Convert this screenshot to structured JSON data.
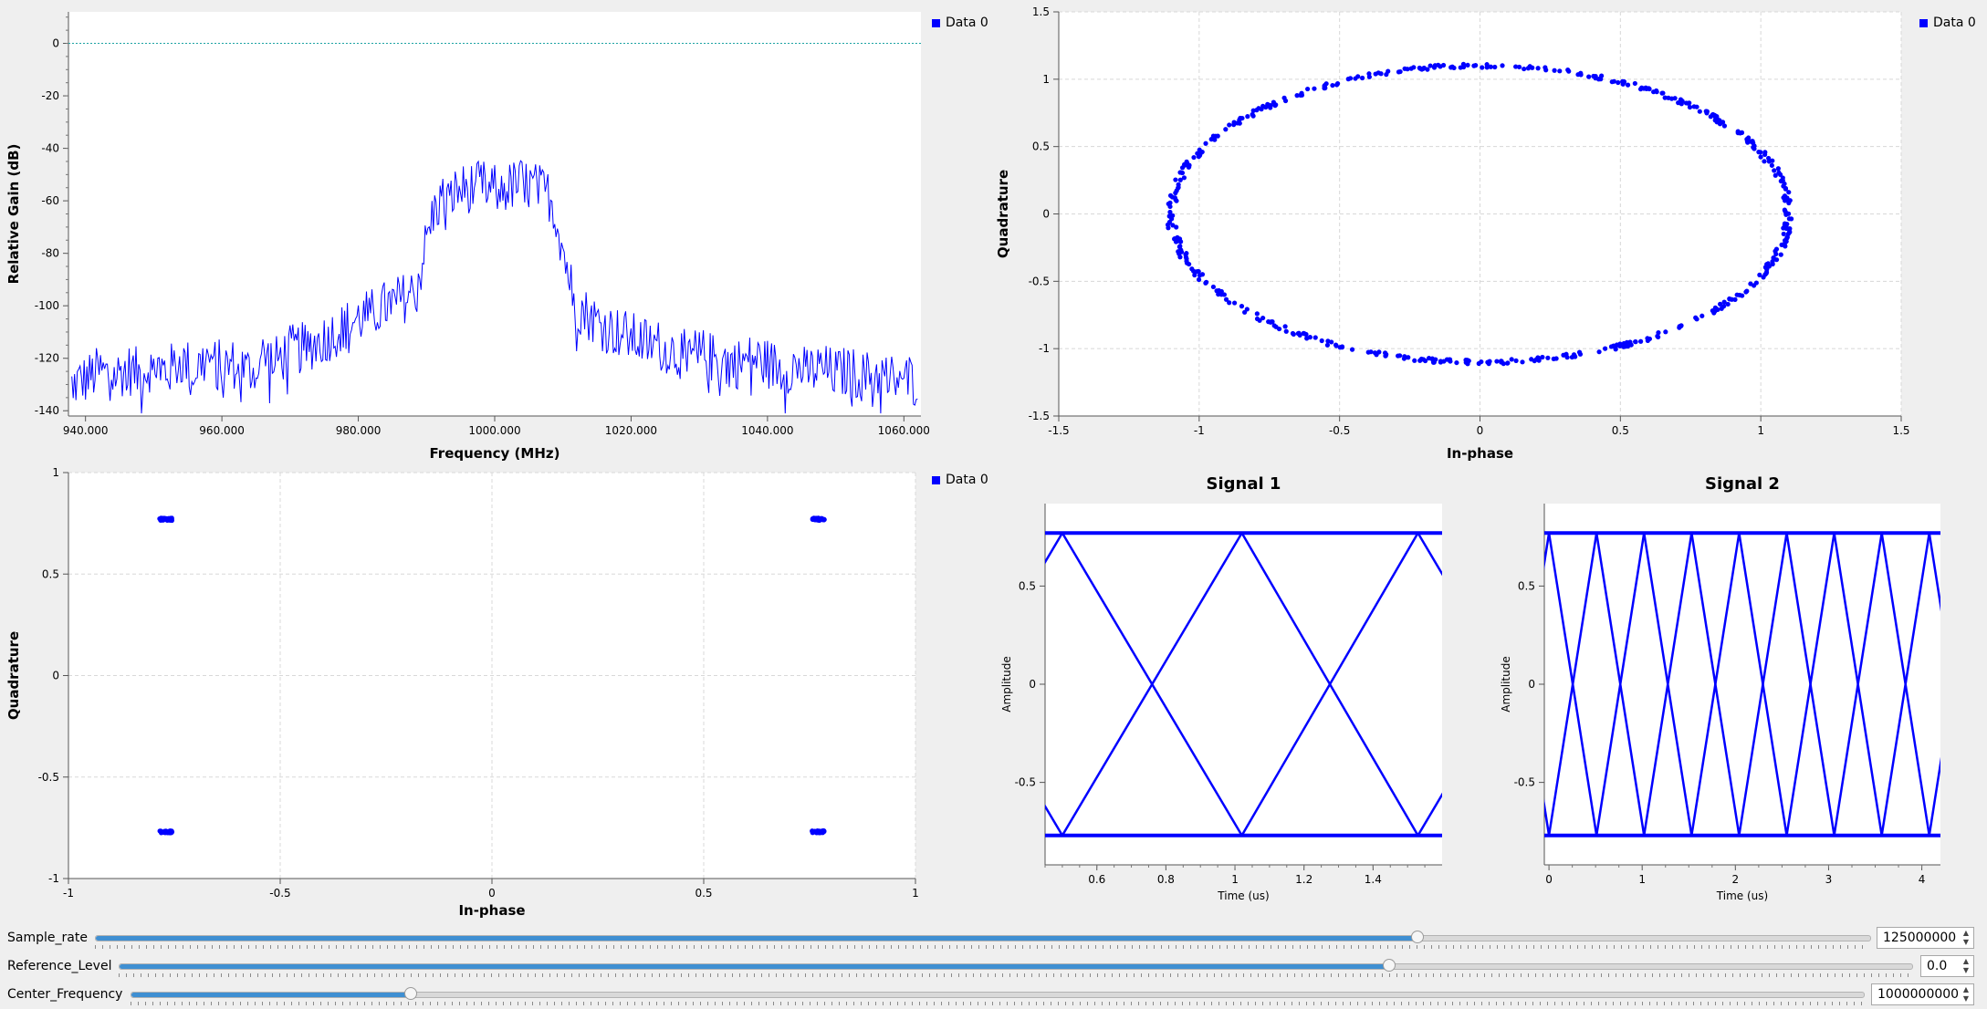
{
  "legend": {
    "series_label": "Data 0"
  },
  "colors": {
    "trace": "#0000ff",
    "grid": "#d8d8d8",
    "ref_line": "#1ca3a3",
    "accent": "#3f8fd2"
  },
  "chart_data": [
    {
      "type": "line",
      "name": "frequency-sink",
      "xlabel": "Frequency (MHz)",
      "ylabel": "Relative Gain (dB)",
      "xlim": [
        937.5,
        1062.5
      ],
      "ylim": [
        -142,
        12
      ],
      "x_ticks": [
        940,
        960,
        980,
        1000,
        1020,
        1040,
        1060
      ],
      "x_tick_labels": [
        "940.000",
        "960.000",
        "980.000",
        "1000.000",
        "1020.000",
        "1040.000",
        "1060.000"
      ],
      "y_ticks": [
        0,
        -20,
        -40,
        -60,
        -80,
        -100,
        -120,
        -140
      ],
      "y_tick_labels": [
        "0",
        "-20",
        "-40",
        "-60",
        "-80",
        "-100",
        "-120",
        "-140"
      ],
      "reference_level": 0,
      "series": [
        {
          "name": "Data 0",
          "x": [
            938,
            940,
            942,
            944,
            946,
            948,
            950,
            952,
            954,
            956,
            958,
            960,
            962,
            964,
            966,
            968,
            970,
            972,
            974,
            976,
            978,
            980,
            982,
            984,
            986,
            988,
            989,
            990,
            991,
            992,
            994,
            996,
            998,
            1000,
            1002,
            1004,
            1006,
            1008,
            1009,
            1010,
            1011,
            1012,
            1014,
            1016,
            1018,
            1020,
            1022,
            1024,
            1026,
            1028,
            1030,
            1032,
            1034,
            1036,
            1038,
            1040,
            1042,
            1044,
            1046,
            1048,
            1050,
            1052,
            1054,
            1056,
            1058,
            1060,
            1062
          ],
          "values": [
            -130,
            -128,
            -125,
            -127,
            -124,
            -126,
            -122,
            -125,
            -121,
            -124,
            -120,
            -123,
            -122,
            -125,
            -119,
            -121,
            -117,
            -116,
            -114,
            -111,
            -108,
            -105,
            -103,
            -100,
            -98,
            -95,
            -88,
            -75,
            -65,
            -60,
            -57,
            -55,
            -54,
            -56,
            -55,
            -53,
            -55,
            -58,
            -66,
            -78,
            -90,
            -100,
            -104,
            -108,
            -110,
            -112,
            -114,
            -115,
            -117,
            -119,
            -118,
            -120,
            -121,
            -122,
            -120,
            -122,
            -124,
            -123,
            -125,
            -124,
            -126,
            -125,
            -127,
            -126,
            -128,
            -127,
            -129
          ]
        }
      ],
      "plot_color": "#0000ff"
    },
    {
      "type": "scatter",
      "name": "constellation-top",
      "xlabel": "In-phase",
      "ylabel": "Quadrature",
      "xlim": [
        -1.5,
        1.5
      ],
      "ylim": [
        -1.5,
        1.5
      ],
      "x_ticks": [
        -1.5,
        -1,
        -0.5,
        0,
        0.5,
        1,
        1.5
      ],
      "x_tick_labels": [
        "-1.5",
        "-1",
        "-0.5",
        "0",
        "0.5",
        "1",
        "1.5"
      ],
      "y_ticks": [
        1.5,
        1,
        0.5,
        0,
        -0.5,
        -1,
        -1.5
      ],
      "y_tick_labels": [
        "1.5",
        "1",
        "0.5",
        "0",
        "-0.5",
        "-1",
        "-1.5"
      ],
      "series": [
        {
          "name": "Data 0",
          "shape": "circle",
          "radius": 1.1
        }
      ]
    },
    {
      "type": "scatter",
      "name": "constellation-bottom",
      "xlabel": "In-phase",
      "ylabel": "Quadrature",
      "xlim": [
        -1,
        1
      ],
      "ylim": [
        -1,
        1
      ],
      "x_ticks": [
        -1,
        -0.5,
        0,
        0.5,
        1
      ],
      "x_tick_labels": [
        "-1",
        "-0.5",
        "0",
        "0.5",
        "1"
      ],
      "y_ticks": [
        1,
        0.5,
        0,
        -0.5,
        -1
      ],
      "y_tick_labels": [
        "1",
        "0.5",
        "0",
        "-0.5",
        "-1"
      ],
      "series": [
        {
          "name": "Data 0",
          "points": [
            [
              -0.77,
              0.77
            ],
            [
              0.77,
              0.77
            ],
            [
              -0.77,
              -0.77
            ],
            [
              0.77,
              -0.77
            ]
          ]
        }
      ]
    },
    {
      "type": "line",
      "name": "eye-signal-1",
      "title": "Signal 1",
      "xlabel": "Time (us)",
      "ylabel": "Amplitude",
      "xlim": [
        0.45,
        1.6
      ],
      "ylim": [
        -0.92,
        0.92
      ],
      "x_ticks": [
        0.6,
        0.8,
        1,
        1.2,
        1.4
      ],
      "x_tick_labels": [
        "0.6",
        "0.8",
        "1",
        "1.2",
        "1.4"
      ],
      "y_ticks": [
        0.5,
        0,
        -0.5
      ],
      "y_tick_labels": [
        "0.5",
        "0",
        "-0.5"
      ],
      "level": 0.77,
      "crossings": [
        0.5,
        1.02,
        1.53
      ],
      "edges": [
        0.45,
        1.6
      ]
    },
    {
      "type": "line",
      "name": "eye-signal-2",
      "title": "Signal 2",
      "xlabel": "Time (us)",
      "ylabel": "Amplitude",
      "xlim": [
        -0.05,
        4.2
      ],
      "ylim": [
        -0.92,
        0.92
      ],
      "x_ticks": [
        0,
        1,
        2,
        3,
        4
      ],
      "x_tick_labels": [
        "0",
        "1",
        "2",
        "3",
        "4"
      ],
      "y_ticks": [
        0.5,
        0,
        -0.5
      ],
      "y_tick_labels": [
        "0.5",
        "0",
        "-0.5"
      ],
      "level": 0.77,
      "crossings": [
        0,
        0.51,
        1.02,
        1.53,
        2.04,
        2.55,
        3.06,
        3.57,
        4.08
      ],
      "edges": [
        0,
        4.16
      ]
    }
  ],
  "controls": [
    {
      "label": "Sample_rate",
      "value": "125000000",
      "fraction": 0.745
    },
    {
      "label": "Reference_Level",
      "value": "0.0",
      "fraction": 0.708
    },
    {
      "label": "Center_Frequency",
      "value": "1000000000",
      "fraction": 0.161
    }
  ]
}
